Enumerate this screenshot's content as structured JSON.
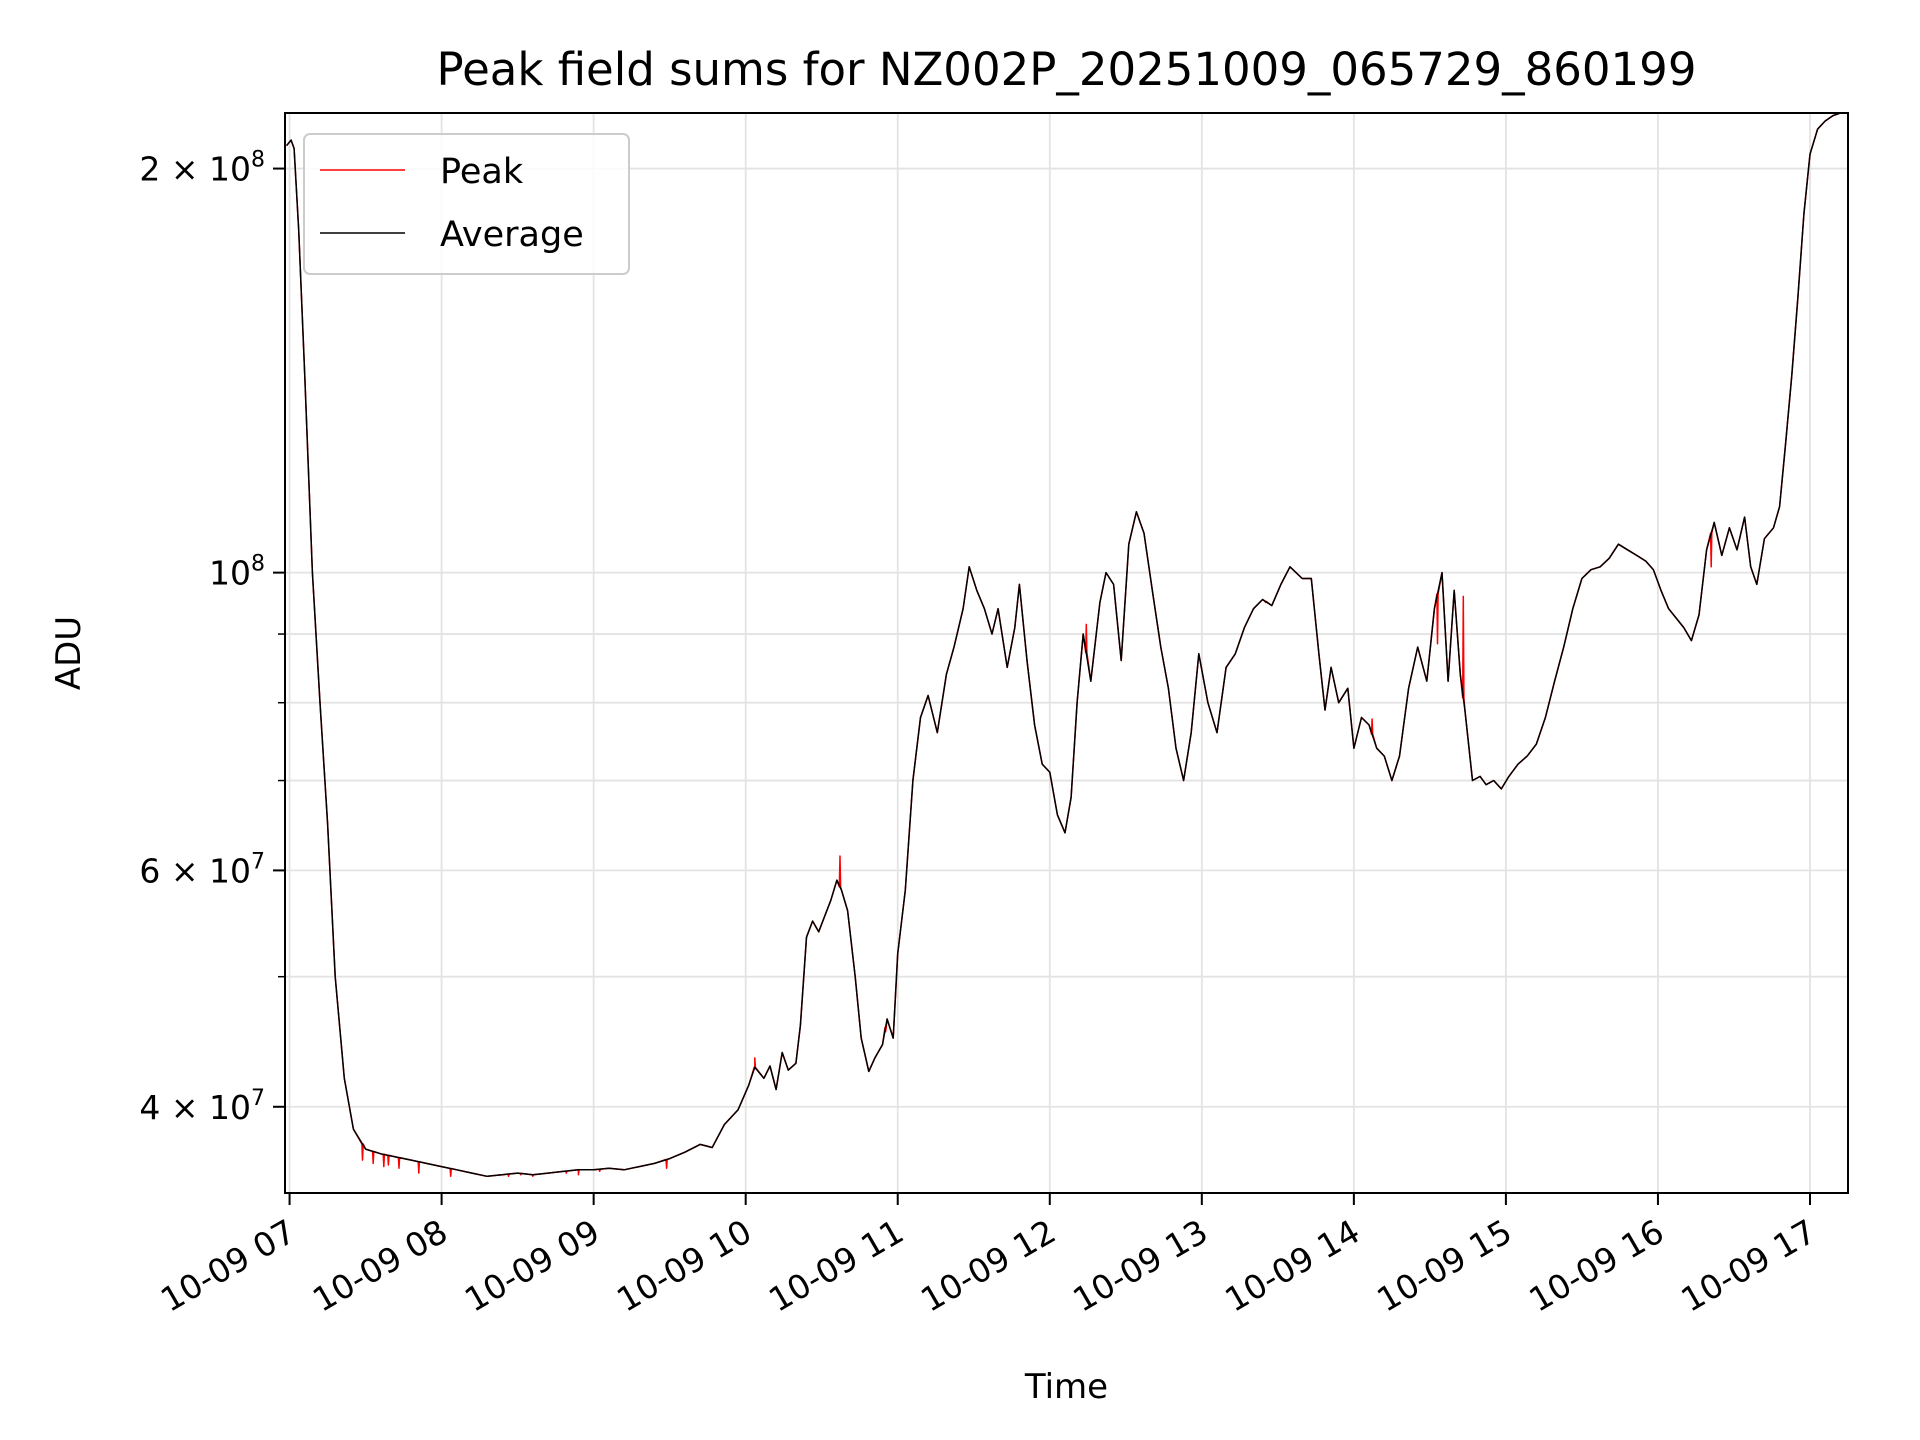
{
  "chart_data": {
    "type": "line",
    "title": "Peak field sums for NZ002P_20251009_065729_860199",
    "xlabel": "Time",
    "ylabel": "ADU",
    "yscale": "log",
    "xlim": [
      6.97,
      17.25
    ],
    "ylim": [
      34500000,
      220000000
    ],
    "grid": true,
    "legend_position": "top-left",
    "x_ticks": [
      {
        "value": 7,
        "label": "10-09 07"
      },
      {
        "value": 8,
        "label": "10-09 08"
      },
      {
        "value": 9,
        "label": "10-09 09"
      },
      {
        "value": 10,
        "label": "10-09 10"
      },
      {
        "value": 11,
        "label": "10-09 11"
      },
      {
        "value": 12,
        "label": "10-09 12"
      },
      {
        "value": 13,
        "label": "10-09 13"
      },
      {
        "value": 14,
        "label": "10-09 14"
      },
      {
        "value": 15,
        "label": "10-09 15"
      },
      {
        "value": 16,
        "label": "10-09 16"
      },
      {
        "value": 17,
        "label": "10-09 17"
      }
    ],
    "y_ticks": [
      {
        "value": 40000000,
        "base": "4 × 10",
        "exp": "7"
      },
      {
        "value": 60000000,
        "base": "6 × 10",
        "exp": "7"
      },
      {
        "value": 100000000,
        "base": "10",
        "exp": "8"
      },
      {
        "value": 200000000,
        "base": "2 × 10",
        "exp": "8"
      }
    ],
    "y_minor_ticks": [
      30000000,
      50000000,
      70000000,
      80000000,
      90000000
    ],
    "series": [
      {
        "name": "Peak",
        "color": "#ff0000",
        "spikes": [
          [
            7.48,
            36500000
          ],
          [
            7.55,
            36300000
          ],
          [
            7.62,
            36100000
          ],
          [
            7.65,
            36200000
          ],
          [
            7.72,
            36000000
          ],
          [
            7.85,
            35700000
          ],
          [
            8.06,
            35500000
          ],
          [
            8.3,
            35500000
          ],
          [
            8.38,
            35600000
          ],
          [
            8.44,
            35500000
          ],
          [
            8.52,
            35600000
          ],
          [
            8.6,
            35500000
          ],
          [
            8.82,
            35700000
          ],
          [
            8.9,
            35600000
          ],
          [
            9.04,
            35800000
          ],
          [
            9.48,
            36000000
          ],
          [
            10.06,
            43500000
          ],
          [
            10.62,
            61500000
          ],
          [
            10.92,
            45500000
          ],
          [
            12.24,
            91500000
          ],
          [
            13.42,
            95000000
          ],
          [
            14.12,
            77800000
          ],
          [
            14.55,
            88500000
          ],
          [
            14.72,
            96000000
          ],
          [
            16.35,
            101000000
          ]
        ]
      },
      {
        "name": "Average",
        "color": "#000000",
        "points": [
          [
            6.98,
            208000000
          ],
          [
            7.01,
            210000000
          ],
          [
            7.03,
            207000000
          ],
          [
            7.06,
            180000000
          ],
          [
            7.1,
            140000000
          ],
          [
            7.15,
            100000000
          ],
          [
            7.2,
            80000000
          ],
          [
            7.25,
            65000000
          ],
          [
            7.3,
            50000000
          ],
          [
            7.36,
            42000000
          ],
          [
            7.42,
            38500000
          ],
          [
            7.5,
            37200000
          ],
          [
            7.6,
            36900000
          ],
          [
            7.7,
            36700000
          ],
          [
            7.8,
            36500000
          ],
          [
            7.9,
            36300000
          ],
          [
            8.0,
            36100000
          ],
          [
            8.1,
            35900000
          ],
          [
            8.2,
            35700000
          ],
          [
            8.3,
            35500000
          ],
          [
            8.4,
            35600000
          ],
          [
            8.5,
            35700000
          ],
          [
            8.6,
            35600000
          ],
          [
            8.7,
            35700000
          ],
          [
            8.8,
            35800000
          ],
          [
            8.9,
            35900000
          ],
          [
            9.0,
            35900000
          ],
          [
            9.1,
            36000000
          ],
          [
            9.2,
            35900000
          ],
          [
            9.3,
            36100000
          ],
          [
            9.4,
            36300000
          ],
          [
            9.5,
            36600000
          ],
          [
            9.6,
            37000000
          ],
          [
            9.7,
            37500000
          ],
          [
            9.78,
            37300000
          ],
          [
            9.86,
            38800000
          ],
          [
            9.95,
            39800000
          ],
          [
            10.02,
            41500000
          ],
          [
            10.06,
            42800000
          ],
          [
            10.12,
            42000000
          ],
          [
            10.16,
            42900000
          ],
          [
            10.2,
            41200000
          ],
          [
            10.24,
            43900000
          ],
          [
            10.28,
            42600000
          ],
          [
            10.33,
            43100000
          ],
          [
            10.36,
            46000000
          ],
          [
            10.4,
            53500000
          ],
          [
            10.44,
            55000000
          ],
          [
            10.48,
            54000000
          ],
          [
            10.52,
            55500000
          ],
          [
            10.56,
            57000000
          ],
          [
            10.6,
            59000000
          ],
          [
            10.63,
            58000000
          ],
          [
            10.67,
            56000000
          ],
          [
            10.72,
            50000000
          ],
          [
            10.76,
            45000000
          ],
          [
            10.81,
            42500000
          ],
          [
            10.85,
            43500000
          ],
          [
            10.9,
            44500000
          ],
          [
            10.93,
            46500000
          ],
          [
            10.97,
            45000000
          ],
          [
            11.0,
            52000000
          ],
          [
            11.05,
            58000000
          ],
          [
            11.1,
            70000000
          ],
          [
            11.15,
            78000000
          ],
          [
            11.2,
            81000000
          ],
          [
            11.26,
            76000000
          ],
          [
            11.32,
            84000000
          ],
          [
            11.37,
            88000000
          ],
          [
            11.43,
            94000000
          ],
          [
            11.47,
            101000000
          ],
          [
            11.52,
            97000000
          ],
          [
            11.57,
            94000000
          ],
          [
            11.62,
            90000000
          ],
          [
            11.66,
            94000000
          ],
          [
            11.72,
            85000000
          ],
          [
            11.77,
            91000000
          ],
          [
            11.8,
            98000000
          ],
          [
            11.85,
            86000000
          ],
          [
            11.9,
            77000000
          ],
          [
            11.95,
            72000000
          ],
          [
            12.0,
            71000000
          ],
          [
            12.05,
            66000000
          ],
          [
            12.1,
            64000000
          ],
          [
            12.14,
            68000000
          ],
          [
            12.18,
            80000000
          ],
          [
            12.22,
            90000000
          ],
          [
            12.27,
            83000000
          ],
          [
            12.33,
            95000000
          ],
          [
            12.37,
            100000000
          ],
          [
            12.42,
            98000000
          ],
          [
            12.47,
            86000000
          ],
          [
            12.52,
            105000000
          ],
          [
            12.57,
            111000000
          ],
          [
            12.62,
            107000000
          ],
          [
            12.68,
            96000000
          ],
          [
            12.73,
            88000000
          ],
          [
            12.78,
            82000000
          ],
          [
            12.83,
            74000000
          ],
          [
            12.88,
            70000000
          ],
          [
            12.93,
            76000000
          ],
          [
            12.98,
            87000000
          ],
          [
            13.04,
            80000000
          ],
          [
            13.1,
            76000000
          ],
          [
            13.16,
            85000000
          ],
          [
            13.22,
            87000000
          ],
          [
            13.28,
            91000000
          ],
          [
            13.34,
            94000000
          ],
          [
            13.4,
            95500000
          ],
          [
            13.46,
            94500000
          ],
          [
            13.52,
            98000000
          ],
          [
            13.58,
            101000000
          ],
          [
            13.66,
            99000000
          ],
          [
            13.72,
            99000000
          ],
          [
            13.77,
            87000000
          ],
          [
            13.81,
            79000000
          ],
          [
            13.85,
            85000000
          ],
          [
            13.9,
            80000000
          ],
          [
            13.96,
            82000000
          ],
          [
            14.0,
            74000000
          ],
          [
            14.05,
            78000000
          ],
          [
            14.1,
            77000000
          ],
          [
            14.15,
            74000000
          ],
          [
            14.2,
            73000000
          ],
          [
            14.25,
            70000000
          ],
          [
            14.3,
            73000000
          ],
          [
            14.36,
            82000000
          ],
          [
            14.42,
            88000000
          ],
          [
            14.48,
            83000000
          ],
          [
            14.53,
            94000000
          ],
          [
            14.58,
            100000000
          ],
          [
            14.62,
            83000000
          ],
          [
            14.66,
            97000000
          ],
          [
            14.7,
            84000000
          ],
          [
            14.73,
            79000000
          ],
          [
            14.78,
            70000000
          ],
          [
            14.83,
            70500000
          ],
          [
            14.87,
            69500000
          ],
          [
            14.92,
            70000000
          ],
          [
            14.97,
            69000000
          ],
          [
            15.02,
            70500000
          ],
          [
            15.08,
            72000000
          ],
          [
            15.14,
            73000000
          ],
          [
            15.2,
            74500000
          ],
          [
            15.26,
            78000000
          ],
          [
            15.32,
            83000000
          ],
          [
            15.38,
            88000000
          ],
          [
            15.44,
            94000000
          ],
          [
            15.5,
            99000000
          ],
          [
            15.56,
            100500000
          ],
          [
            15.62,
            101000000
          ],
          [
            15.68,
            102500000
          ],
          [
            15.74,
            105000000
          ],
          [
            15.8,
            104000000
          ],
          [
            15.86,
            103000000
          ],
          [
            15.92,
            102000000
          ],
          [
            15.97,
            100500000
          ],
          [
            16.02,
            97000000
          ],
          [
            16.07,
            94000000
          ],
          [
            16.12,
            92500000
          ],
          [
            16.17,
            91000000
          ],
          [
            16.22,
            89000000
          ],
          [
            16.27,
            93000000
          ],
          [
            16.32,
            104000000
          ],
          [
            16.37,
            109000000
          ],
          [
            16.42,
            103000000
          ],
          [
            16.47,
            108000000
          ],
          [
            16.52,
            104000000
          ],
          [
            16.57,
            110000000
          ],
          [
            16.61,
            101000000
          ],
          [
            16.65,
            98000000
          ],
          [
            16.7,
            106000000
          ],
          [
            16.76,
            108000000
          ],
          [
            16.8,
            112000000
          ],
          [
            16.84,
            125000000
          ],
          [
            16.88,
            140000000
          ],
          [
            16.92,
            160000000
          ],
          [
            16.96,
            185000000
          ],
          [
            17.0,
            205000000
          ],
          [
            17.05,
            214000000
          ],
          [
            17.1,
            217000000
          ],
          [
            17.15,
            219000000
          ],
          [
            17.2,
            220000000
          ]
        ]
      }
    ]
  }
}
